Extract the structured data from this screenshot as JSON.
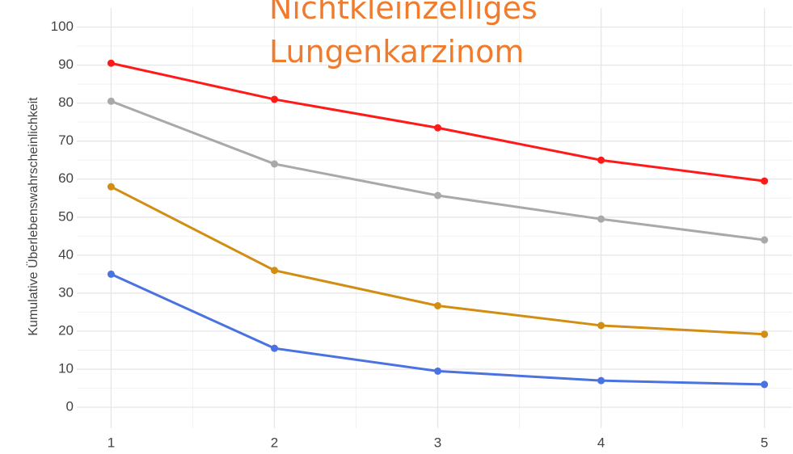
{
  "chart_data": {
    "type": "line",
    "title": "Nichtkleinzelliges Lungenkarzinom",
    "title_color": "#f07b2c",
    "y_label": "Kumulative Überlebenswahrscheinlichkeit",
    "x": [
      1,
      2,
      3,
      4,
      5
    ],
    "xlim": [
      0.79,
      5.17
    ],
    "xticks": [
      1,
      2,
      3,
      4,
      5
    ],
    "ylim": [
      -5.5,
      105
    ],
    "yticks": [
      0,
      10,
      20,
      30,
      40,
      50,
      60,
      70,
      80,
      90,
      100
    ],
    "grid": true,
    "series": [
      {
        "color": "#ff1a1a",
        "values": [
          90.5,
          81,
          73.5,
          65,
          59.5
        ]
      },
      {
        "color": "#a9a9a9",
        "values": [
          80.5,
          64,
          55.7,
          49.5,
          44
        ]
      },
      {
        "color": "#d18e12",
        "values": [
          58,
          36,
          26.7,
          21.5,
          19.2
        ]
      },
      {
        "color": "#4a72e0",
        "values": [
          35,
          15.5,
          9.5,
          7,
          6
        ]
      }
    ]
  }
}
